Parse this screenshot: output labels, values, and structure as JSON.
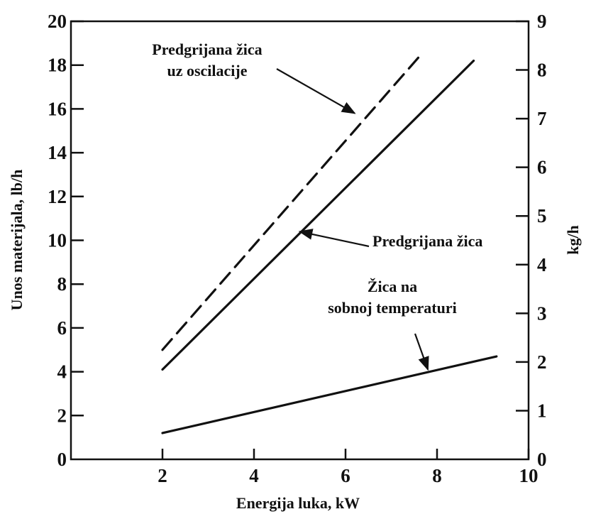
{
  "chart_data": {
    "type": "line",
    "xlabel": "Energija luka, kW",
    "ylabel": "Unos materijala, lb/h",
    "y2label": "kg/h",
    "xlim": [
      0,
      10
    ],
    "ylim": [
      0,
      20
    ],
    "y2lim": [
      0,
      9
    ],
    "x_ticks": [
      2,
      4,
      6,
      8,
      10
    ],
    "y_ticks": [
      0,
      2,
      4,
      6,
      8,
      10,
      12,
      14,
      16,
      18,
      20
    ],
    "y2_ticks": [
      0,
      1,
      2,
      3,
      4,
      5,
      6,
      7,
      8,
      9
    ],
    "grid": false,
    "series": [
      {
        "name": "Predgrijana žica uz oscilacije",
        "style": "dashed",
        "x": [
          2.0,
          7.7
        ],
        "y": [
          5.0,
          18.6
        ]
      },
      {
        "name": "Predgrijana žica",
        "style": "solid",
        "x": [
          2.0,
          8.8
        ],
        "y": [
          4.1,
          18.2
        ]
      },
      {
        "name": "Žica na sobnoj temperaturi",
        "style": "solid",
        "x": [
          2.0,
          9.3
        ],
        "y": [
          1.2,
          4.7
        ]
      }
    ],
    "annotations": [
      {
        "lines": [
          "Predgrijana žica",
          "uz oscilacije"
        ],
        "points_to_series": 0,
        "target": [
          6.2,
          15.8
        ]
      },
      {
        "lines": [
          "Predgrijana žica"
        ],
        "points_to_series": 1,
        "target": [
          5.0,
          10.4
        ]
      },
      {
        "lines": [
          "Žica na",
          "sobnoj temperaturi"
        ],
        "points_to_series": 2,
        "target": [
          7.8,
          4.1
        ]
      }
    ]
  }
}
